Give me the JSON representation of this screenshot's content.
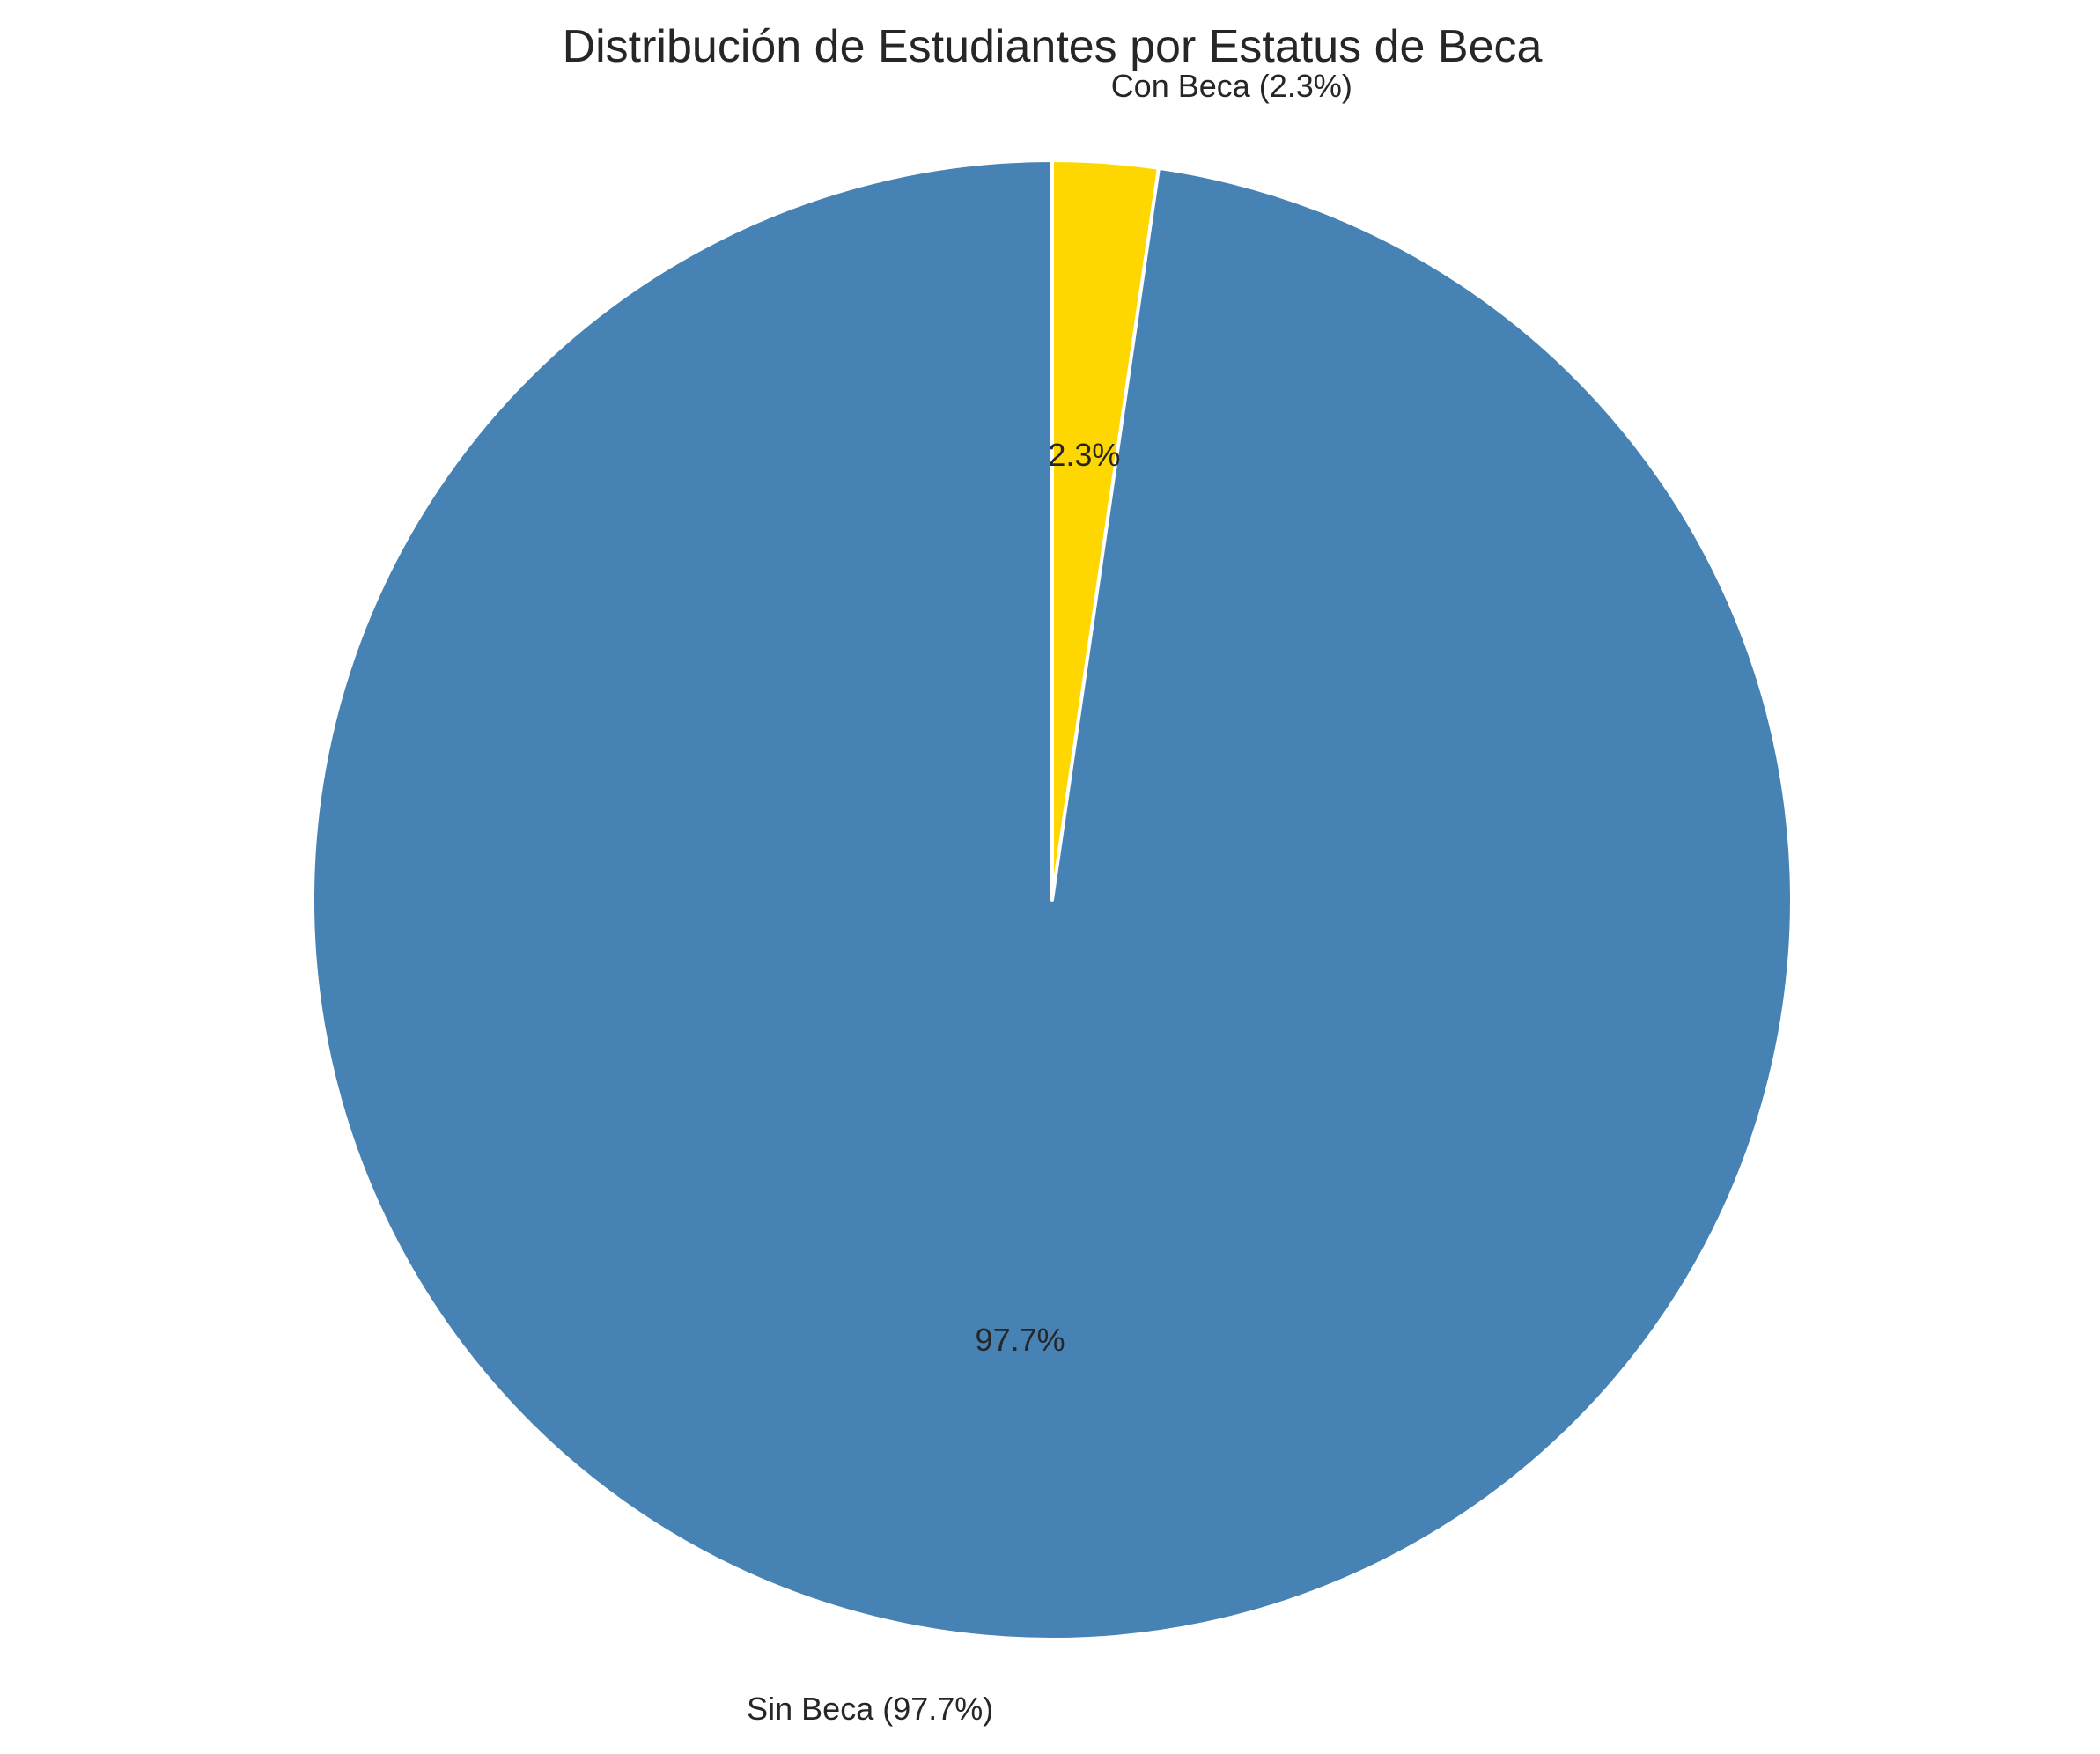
{
  "chart_data": {
    "type": "pie",
    "title": "Distribución de Estudiantes por Estatus de Beca",
    "start_angle": 90,
    "direction": "clockwise",
    "slices": [
      {
        "label": "Con Beca (2.3%)",
        "value": 2.3,
        "pct_label": "2.3%",
        "color": "#FFD700"
      },
      {
        "label": "Sin Beca (97.7%)",
        "value": 97.7,
        "pct_label": "97.7%",
        "color": "#4682B4"
      }
    ],
    "edge_color": "#FFFFFF",
    "legend": "none"
  }
}
